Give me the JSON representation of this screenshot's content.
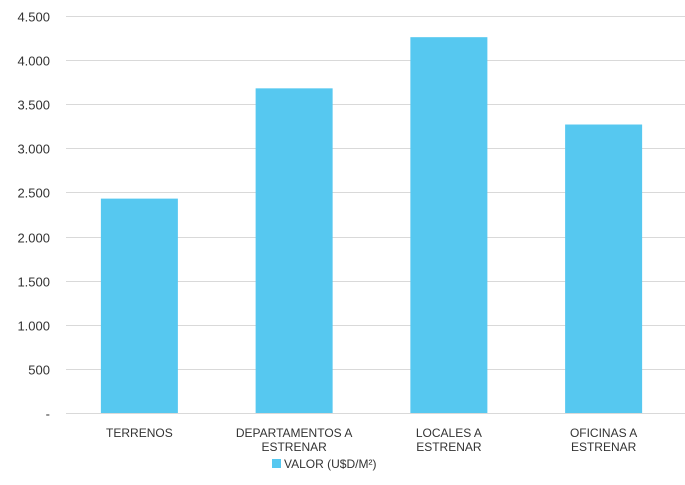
{
  "chart_data": {
    "type": "bar",
    "categories": [
      [
        "TERRENOS"
      ],
      [
        "DEPARTAMENTOS A",
        "ESTRENAR"
      ],
      [
        "LOCALES A",
        "ESTRENAR"
      ],
      [
        "OFICINAS A",
        "ESTRENAR"
      ]
    ],
    "series": [
      {
        "name": "VALOR (U$D/M²)",
        "values": [
          2430,
          3680,
          4260,
          3270
        ],
        "color": "#56c8f0"
      }
    ],
    "ylim": [
      0,
      4500
    ],
    "yticks": [
      0,
      500,
      1000,
      1500,
      2000,
      2500,
      3000,
      3500,
      4000,
      4500
    ],
    "ytick_labels": [
      "-",
      "500",
      "1.000",
      "1.500",
      "2.000",
      "2.500",
      "3.000",
      "3.500",
      "4.000",
      "4.500"
    ],
    "grid": true,
    "legend_position": "bottom"
  }
}
